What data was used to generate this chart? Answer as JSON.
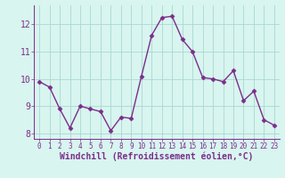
{
  "x": [
    0,
    1,
    2,
    3,
    4,
    5,
    6,
    7,
    8,
    9,
    10,
    11,
    12,
    13,
    14,
    15,
    16,
    17,
    18,
    19,
    20,
    21,
    22,
    23
  ],
  "y": [
    9.9,
    9.7,
    8.9,
    8.2,
    9.0,
    8.9,
    8.8,
    8.1,
    8.6,
    8.55,
    10.1,
    11.6,
    12.25,
    12.3,
    11.45,
    11.0,
    10.05,
    10.0,
    9.9,
    10.3,
    9.2,
    9.55,
    8.5,
    8.3
  ],
  "line_color": "#7b2d8b",
  "marker": "D",
  "marker_size": 2.5,
  "bg_color": "#d8f5ef",
  "grid_color": "#aad8d0",
  "xlabel": "Windchill (Refroidissement éolien,°C)",
  "ylim": [
    7.8,
    12.7
  ],
  "xlim": [
    -0.5,
    23.5
  ],
  "yticks": [
    8,
    9,
    10,
    11,
    12
  ],
  "xticks": [
    0,
    1,
    2,
    3,
    4,
    5,
    6,
    7,
    8,
    9,
    10,
    11,
    12,
    13,
    14,
    15,
    16,
    17,
    18,
    19,
    20,
    21,
    22,
    23
  ],
  "tick_color": "#7b2d8b",
  "font_size_x": 5.5,
  "font_size_y": 7,
  "xlabel_fontsize": 7,
  "linewidth": 1.0
}
